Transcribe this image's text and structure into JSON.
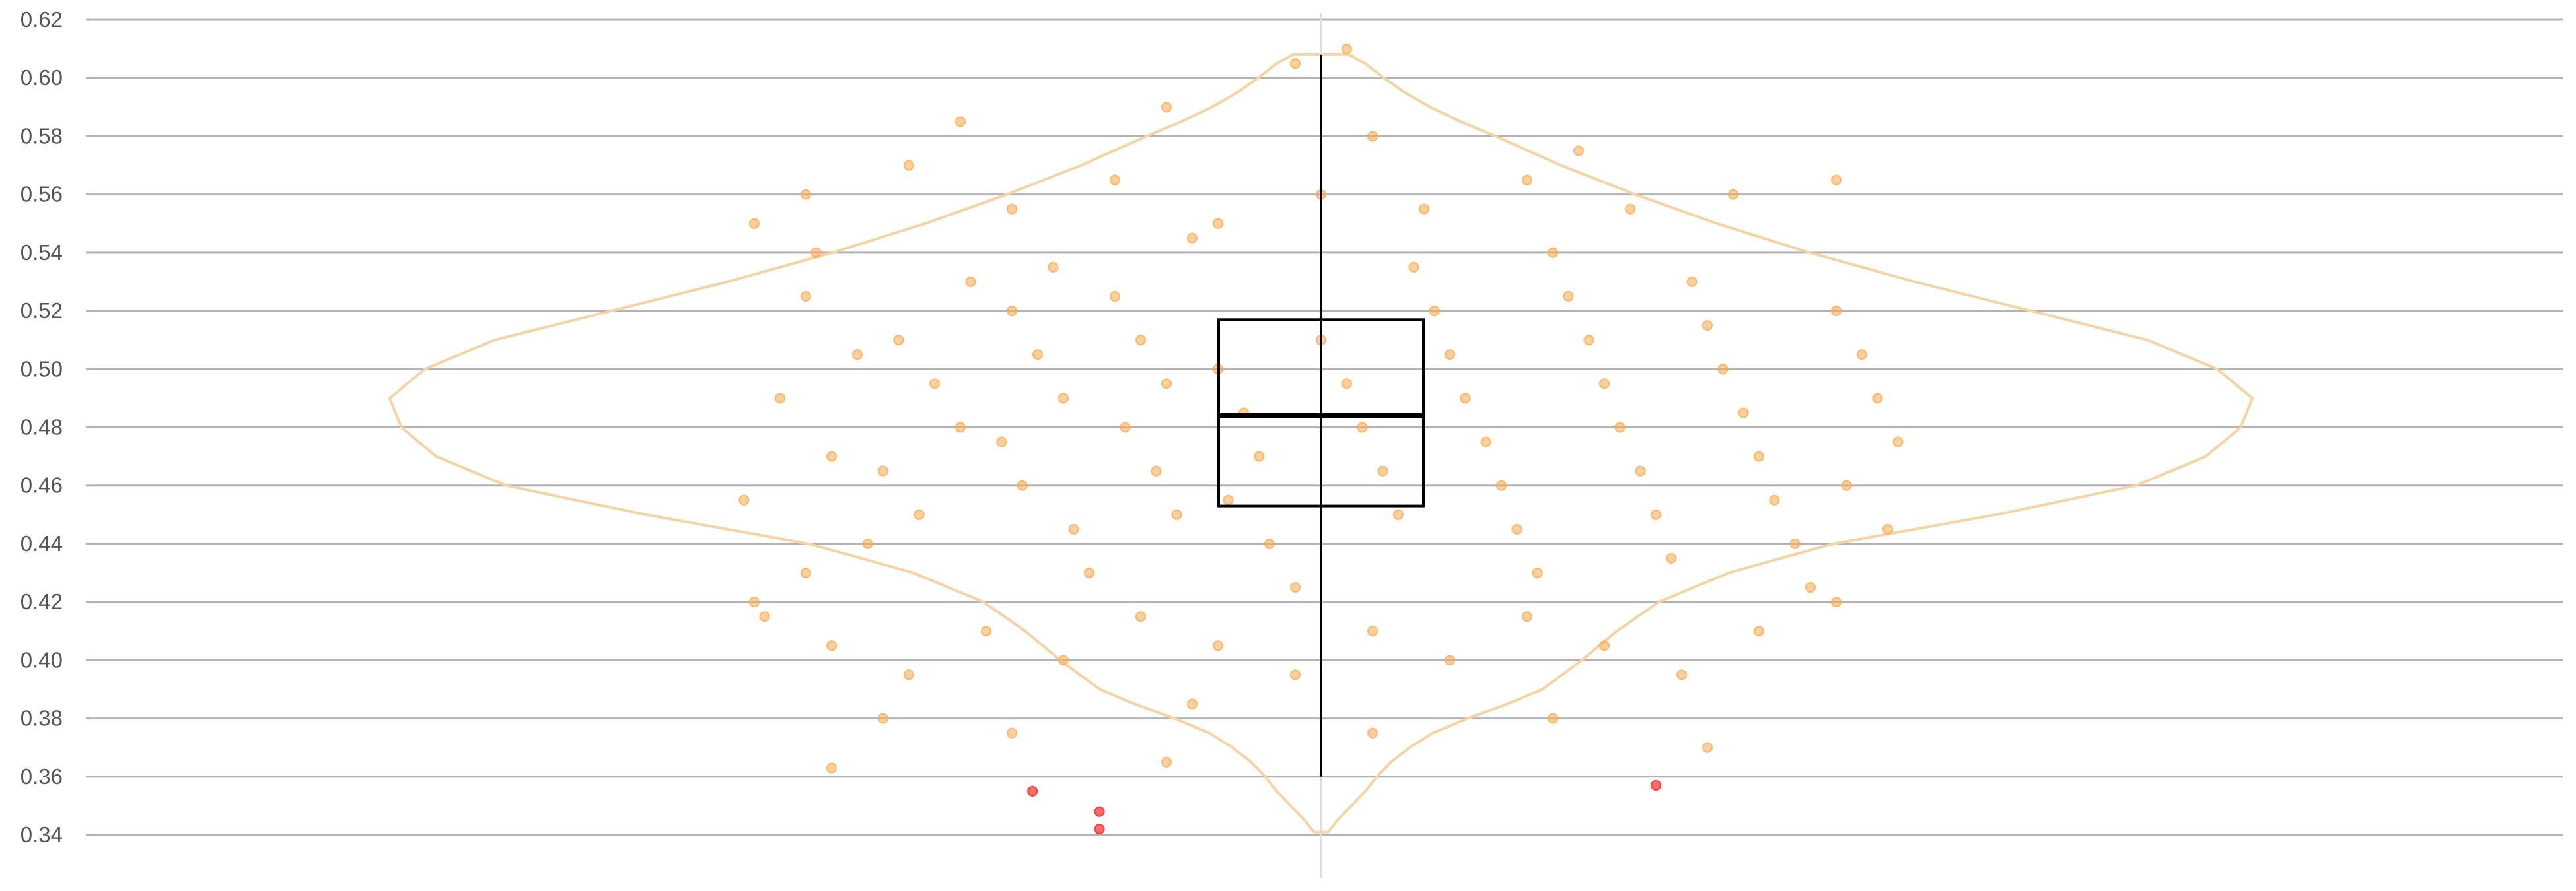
{
  "chart_data": {
    "type": "violin",
    "title": "",
    "xlabel": "",
    "ylabel": "",
    "ylim": [
      0.335,
      0.62
    ],
    "yticks": [
      0.34,
      0.36,
      0.38,
      0.4,
      0.42,
      0.44,
      0.46,
      0.48,
      0.5,
      0.52,
      0.54,
      0.56,
      0.58,
      0.6,
      0.62
    ],
    "ytick_labels": [
      "0.34",
      "0.36",
      "0.38",
      "0.40",
      "0.42",
      "0.44",
      "0.46",
      "0.48",
      "0.50",
      "0.52",
      "0.54",
      "0.56",
      "0.58",
      "0.60",
      "0.62"
    ],
    "grid": true,
    "legend": "none",
    "colors": {
      "points": "#ffa94d",
      "violin_outline": "#f5d3a3",
      "box": "#000000",
      "outliers": "#ff3b3b",
      "grid": "#b3b3b3",
      "center_line": "#dddddd"
    },
    "box": {
      "q1": 0.453,
      "median": 0.484,
      "q3": 0.517,
      "whisker_low": 0.36,
      "whisker_high": 0.608
    },
    "violin_density": [
      [
        0.341,
        0.03
      ],
      [
        0.345,
        0.07
      ],
      [
        0.35,
        0.13
      ],
      [
        0.355,
        0.19
      ],
      [
        0.36,
        0.24
      ],
      [
        0.365,
        0.3
      ],
      [
        0.37,
        0.38
      ],
      [
        0.375,
        0.48
      ],
      [
        0.38,
        0.63
      ],
      [
        0.385,
        0.8
      ],
      [
        0.39,
        0.95
      ],
      [
        0.4,
        1.12
      ],
      [
        0.41,
        1.27
      ],
      [
        0.42,
        1.45
      ],
      [
        0.43,
        1.75
      ],
      [
        0.44,
        2.2
      ],
      [
        0.45,
        2.9
      ],
      [
        0.46,
        3.5
      ],
      [
        0.47,
        3.8
      ],
      [
        0.48,
        3.95
      ],
      [
        0.49,
        4.0
      ],
      [
        0.5,
        3.85
      ],
      [
        0.51,
        3.55
      ],
      [
        0.52,
        3.05
      ],
      [
        0.53,
        2.55
      ],
      [
        0.54,
        2.1
      ],
      [
        0.55,
        1.7
      ],
      [
        0.56,
        1.35
      ],
      [
        0.57,
        1.03
      ],
      [
        0.58,
        0.75
      ],
      [
        0.585,
        0.6
      ],
      [
        0.59,
        0.47
      ],
      [
        0.595,
        0.36
      ],
      [
        0.6,
        0.27
      ],
      [
        0.605,
        0.19
      ],
      [
        0.608,
        0.12
      ],
      [
        0.608,
        0.0
      ]
    ],
    "outliers": [
      {
        "x": -0.56,
        "y": 0.355
      },
      {
        "x": -0.43,
        "y": 0.348
      },
      {
        "x": -0.43,
        "y": 0.342
      },
      {
        "x": 0.65,
        "y": 0.357
      }
    ],
    "points": [
      {
        "x": -1.1,
        "y": 0.55
      },
      {
        "x": -1.0,
        "y": 0.525
      },
      {
        "x": -0.9,
        "y": 0.505
      },
      {
        "x": -1.05,
        "y": 0.49
      },
      {
        "x": -0.95,
        "y": 0.47
      },
      {
        "x": -1.12,
        "y": 0.455
      },
      {
        "x": -0.88,
        "y": 0.44
      },
      {
        "x": -1.0,
        "y": 0.43
      },
      {
        "x": -1.08,
        "y": 0.415
      },
      {
        "x": -0.98,
        "y": 0.54
      },
      {
        "x": -0.82,
        "y": 0.51
      },
      {
        "x": -0.75,
        "y": 0.495
      },
      {
        "x": -0.7,
        "y": 0.48
      },
      {
        "x": -0.85,
        "y": 0.465
      },
      {
        "x": -0.78,
        "y": 0.45
      },
      {
        "x": -0.68,
        "y": 0.53
      },
      {
        "x": -0.6,
        "y": 0.52
      },
      {
        "x": -0.55,
        "y": 0.505
      },
      {
        "x": -0.5,
        "y": 0.49
      },
      {
        "x": -0.62,
        "y": 0.475
      },
      {
        "x": -0.58,
        "y": 0.46
      },
      {
        "x": -0.48,
        "y": 0.445
      },
      {
        "x": -0.45,
        "y": 0.43
      },
      {
        "x": -0.52,
        "y": 0.535
      },
      {
        "x": -0.4,
        "y": 0.525
      },
      {
        "x": -0.35,
        "y": 0.51
      },
      {
        "x": -0.3,
        "y": 0.495
      },
      {
        "x": -0.38,
        "y": 0.48
      },
      {
        "x": -0.32,
        "y": 0.465
      },
      {
        "x": -0.28,
        "y": 0.45
      },
      {
        "x": -0.25,
        "y": 0.545
      },
      {
        "x": -0.2,
        "y": 0.5
      },
      {
        "x": -0.15,
        "y": 0.485
      },
      {
        "x": -0.12,
        "y": 0.47
      },
      {
        "x": -0.18,
        "y": 0.455
      },
      {
        "x": -0.1,
        "y": 0.44
      },
      {
        "x": -0.05,
        "y": 0.425
      },
      {
        "x": 0.0,
        "y": 0.51
      },
      {
        "x": 0.05,
        "y": 0.495
      },
      {
        "x": 0.08,
        "y": 0.48
      },
      {
        "x": 0.12,
        "y": 0.465
      },
      {
        "x": 0.15,
        "y": 0.45
      },
      {
        "x": 0.18,
        "y": 0.535
      },
      {
        "x": 0.22,
        "y": 0.52
      },
      {
        "x": 0.25,
        "y": 0.505
      },
      {
        "x": 0.28,
        "y": 0.49
      },
      {
        "x": 0.32,
        "y": 0.475
      },
      {
        "x": 0.35,
        "y": 0.46
      },
      {
        "x": 0.38,
        "y": 0.445
      },
      {
        "x": 0.42,
        "y": 0.43
      },
      {
        "x": 0.45,
        "y": 0.54
      },
      {
        "x": 0.48,
        "y": 0.525
      },
      {
        "x": 0.52,
        "y": 0.51
      },
      {
        "x": 0.55,
        "y": 0.495
      },
      {
        "x": 0.58,
        "y": 0.48
      },
      {
        "x": 0.62,
        "y": 0.465
      },
      {
        "x": 0.65,
        "y": 0.45
      },
      {
        "x": 0.68,
        "y": 0.435
      },
      {
        "x": 0.72,
        "y": 0.53
      },
      {
        "x": 0.75,
        "y": 0.515
      },
      {
        "x": 0.78,
        "y": 0.5
      },
      {
        "x": 0.82,
        "y": 0.485
      },
      {
        "x": 0.85,
        "y": 0.47
      },
      {
        "x": 0.88,
        "y": 0.455
      },
      {
        "x": 0.92,
        "y": 0.44
      },
      {
        "x": 0.95,
        "y": 0.425
      },
      {
        "x": 1.0,
        "y": 0.52
      },
      {
        "x": 1.05,
        "y": 0.505
      },
      {
        "x": 1.08,
        "y": 0.49
      },
      {
        "x": 1.12,
        "y": 0.475
      },
      {
        "x": 1.02,
        "y": 0.46
      },
      {
        "x": 1.1,
        "y": 0.445
      },
      {
        "x": -1.1,
        "y": 0.42
      },
      {
        "x": -0.95,
        "y": 0.405
      },
      {
        "x": -0.8,
        "y": 0.395
      },
      {
        "x": -0.65,
        "y": 0.41
      },
      {
        "x": -0.5,
        "y": 0.4
      },
      {
        "x": -0.35,
        "y": 0.415
      },
      {
        "x": -0.2,
        "y": 0.405
      },
      {
        "x": -0.05,
        "y": 0.395
      },
      {
        "x": 0.1,
        "y": 0.41
      },
      {
        "x": 0.25,
        "y": 0.4
      },
      {
        "x": 0.4,
        "y": 0.415
      },
      {
        "x": 0.55,
        "y": 0.405
      },
      {
        "x": 0.7,
        "y": 0.395
      },
      {
        "x": 0.85,
        "y": 0.41
      },
      {
        "x": 1.0,
        "y": 0.42
      },
      {
        "x": -1.0,
        "y": 0.56
      },
      {
        "x": -0.8,
        "y": 0.57
      },
      {
        "x": -0.6,
        "y": 0.555
      },
      {
        "x": -0.4,
        "y": 0.565
      },
      {
        "x": -0.2,
        "y": 0.55
      },
      {
        "x": 0.0,
        "y": 0.56
      },
      {
        "x": 0.2,
        "y": 0.555
      },
      {
        "x": 0.4,
        "y": 0.565
      },
      {
        "x": 0.6,
        "y": 0.555
      },
      {
        "x": 0.8,
        "y": 0.56
      },
      {
        "x": 1.0,
        "y": 0.565
      },
      {
        "x": -0.85,
        "y": 0.38
      },
      {
        "x": -0.6,
        "y": 0.375
      },
      {
        "x": -0.25,
        "y": 0.385
      },
      {
        "x": 0.1,
        "y": 0.375
      },
      {
        "x": 0.45,
        "y": 0.38
      },
      {
        "x": 0.75,
        "y": 0.37
      },
      {
        "x": -0.7,
        "y": 0.585
      },
      {
        "x": -0.3,
        "y": 0.59
      },
      {
        "x": 0.1,
        "y": 0.58
      },
      {
        "x": 0.5,
        "y": 0.575
      },
      {
        "x": -0.05,
        "y": 0.605
      },
      {
        "x": 0.05,
        "y": 0.61
      },
      {
        "x": -0.95,
        "y": 0.363
      },
      {
        "x": -0.3,
        "y": 0.365
      }
    ]
  }
}
